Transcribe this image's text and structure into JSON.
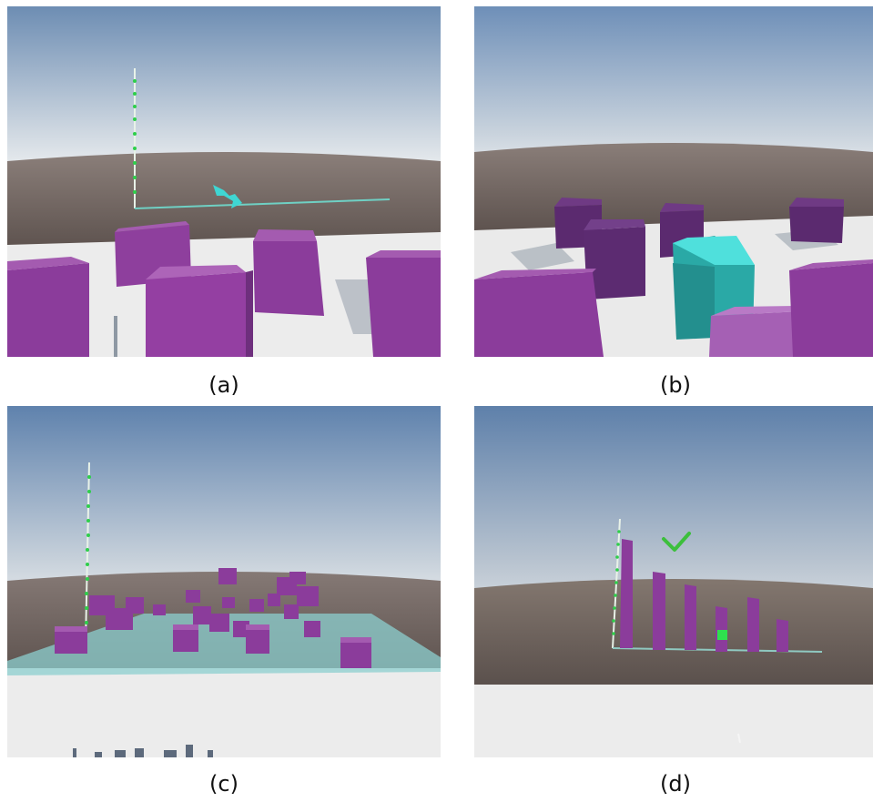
{
  "figure": {
    "panels": [
      {
        "caption": "(a)",
        "scene": "unity-scene-with-axis-and-arrow"
      },
      {
        "caption": "(b)",
        "scene": "unity-scene-with-cyan-selected-cube"
      },
      {
        "caption": "(c)",
        "scene": "unity-scene-with-scattered-cubes"
      },
      {
        "caption": "(d)",
        "scene": "unity-scene-with-bar-chart"
      }
    ]
  },
  "colors": {
    "sky_top": "#5f82ad",
    "sky_bottom": "#d3dbe2",
    "ground": "#6b5e59",
    "floor": "#ececec",
    "cube_top": "#a45bb0",
    "cube_front": "#8b3c9b",
    "cube_side": "#6e2f7d",
    "cyan": "#2fc8c4",
    "axis_green": "#2ecf4a",
    "checkmark": "#3cbf3c"
  }
}
